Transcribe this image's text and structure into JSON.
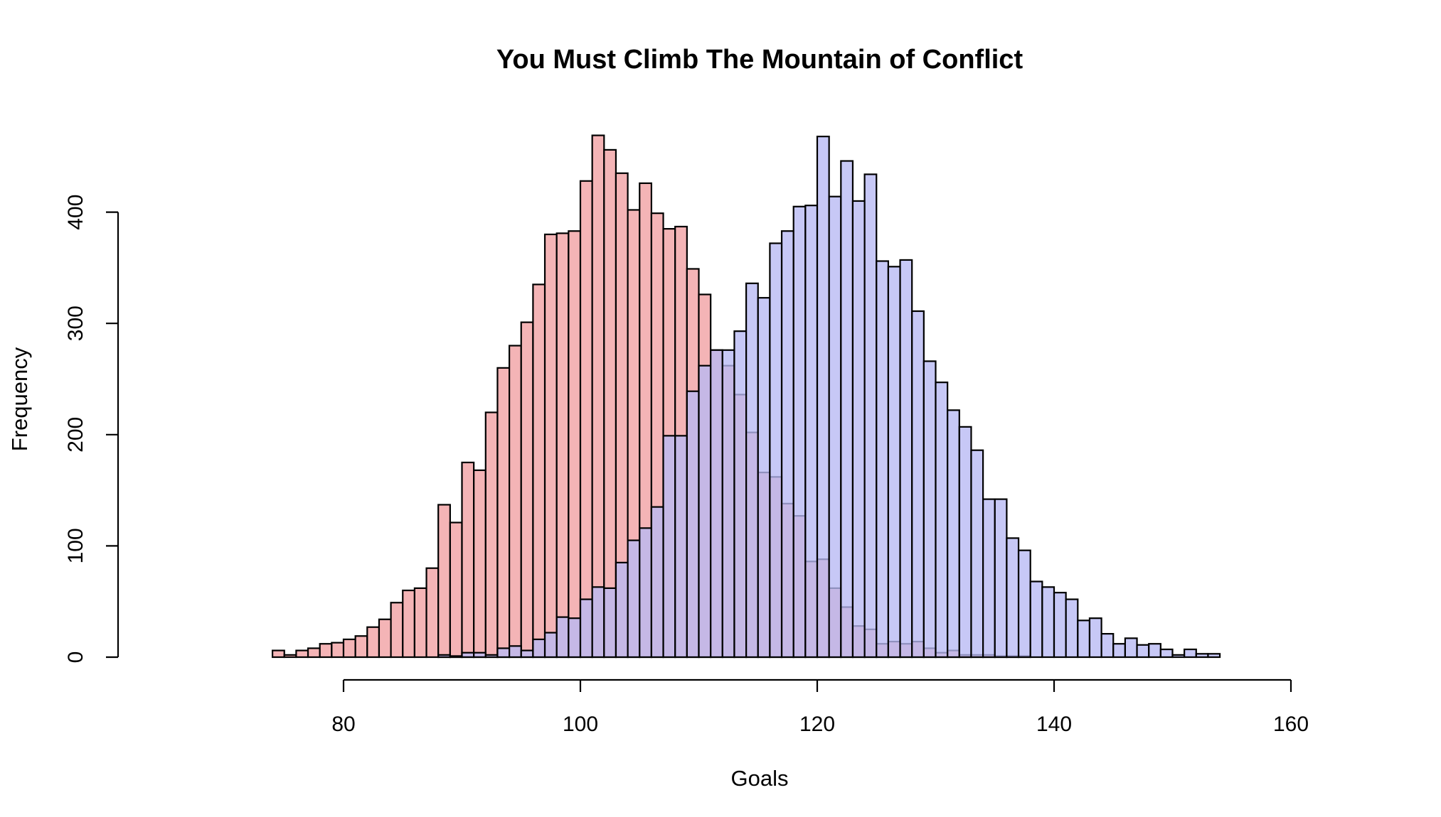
{
  "chart_data": {
    "type": "histogram",
    "title": "You Must Climb The Mountain of Conflict",
    "xlabel": "Goals",
    "ylabel": "Frequency",
    "xlim": [
      60,
      165
    ],
    "ylim": [
      0,
      470
    ],
    "x_ticks": [
      80,
      100,
      120,
      140,
      160
    ],
    "y_ticks": [
      0,
      100,
      200,
      300,
      400
    ],
    "bin_width": 1,
    "bins_start": [
      74,
      75,
      76,
      77,
      78,
      79,
      80,
      81,
      82,
      83,
      84,
      85,
      86,
      87,
      88,
      89,
      90,
      91,
      92,
      93,
      94,
      95,
      96,
      97,
      98,
      99,
      100,
      101,
      102,
      103,
      104,
      105,
      106,
      107,
      108,
      109,
      110,
      111,
      112,
      113,
      114,
      115,
      116,
      117,
      118,
      119,
      120,
      121,
      122,
      123,
      124,
      125,
      126,
      127,
      128,
      129,
      130,
      131,
      132,
      133,
      134,
      135,
      136,
      137,
      138,
      139,
      140,
      141,
      142,
      143,
      144,
      145,
      146,
      147,
      148,
      149,
      150,
      151,
      152,
      153
    ],
    "series": [
      {
        "name": "",
        "color": "#f4b4b6",
        "values": [
          6,
          2,
          6,
          8,
          12,
          13,
          16,
          19,
          27,
          34,
          49,
          60,
          62,
          80,
          137,
          121,
          175,
          168,
          220,
          260,
          280,
          301,
          335,
          380,
          381,
          383,
          428,
          469,
          456,
          435,
          402,
          426,
          399,
          385,
          387,
          349,
          326,
          276,
          262,
          236,
          202,
          166,
          162,
          138,
          127,
          86,
          88,
          62,
          45,
          28,
          25,
          12,
          14,
          12,
          14,
          8,
          4,
          6,
          2,
          2,
          2,
          1,
          1,
          1,
          0,
          0,
          0,
          0,
          0,
          0,
          0,
          0,
          0,
          0,
          0,
          0,
          0,
          0,
          0,
          0
        ]
      },
      {
        "name": "",
        "color": "#b7b9f4",
        "values": [
          0,
          0,
          0,
          0,
          0,
          0,
          0,
          0,
          0,
          0,
          0,
          0,
          0,
          0,
          2,
          1,
          4,
          4,
          2,
          8,
          10,
          6,
          16,
          22,
          36,
          35,
          52,
          63,
          62,
          85,
          105,
          116,
          135,
          199,
          199,
          239,
          262,
          276,
          276,
          293,
          336,
          323,
          372,
          383,
          405,
          406,
          468,
          414,
          446,
          410,
          434,
          356,
          351,
          357,
          311,
          266,
          247,
          222,
          207,
          186,
          142,
          142,
          107,
          96,
          68,
          63,
          58,
          52,
          33,
          35,
          21,
          12,
          17,
          11,
          12,
          7,
          2,
          7,
          3,
          3
        ]
      }
    ]
  }
}
